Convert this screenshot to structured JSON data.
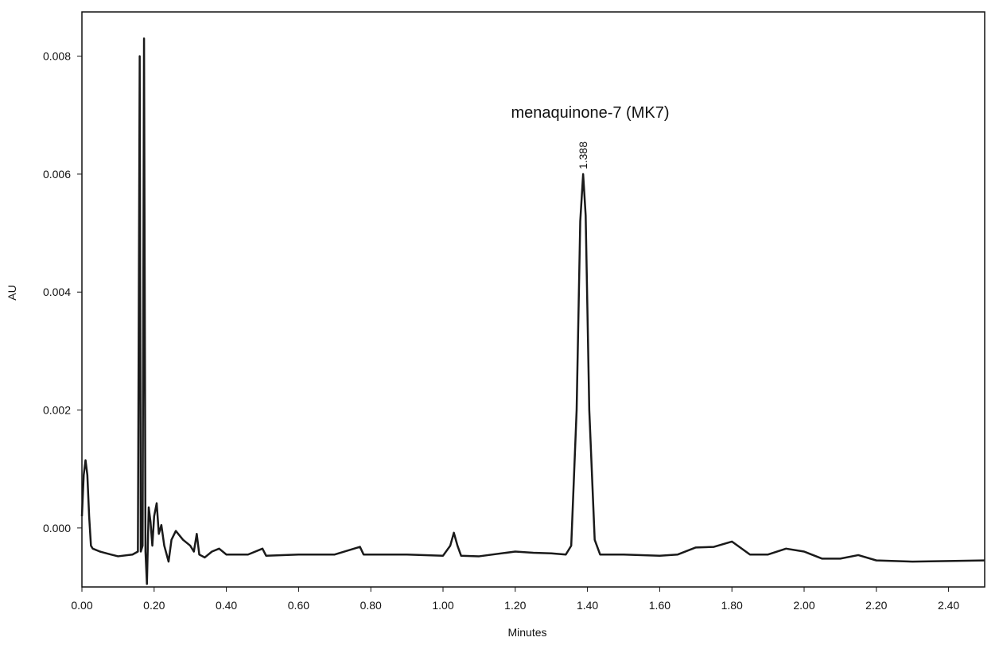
{
  "chart_data": {
    "type": "line",
    "annotation": "menaquinone-7 (MK7)",
    "peak_label": 1.388,
    "x_label": "Minutes",
    "y_label": "AU",
    "xlim": [
      0,
      2.5
    ],
    "ylim": [
      -0.001,
      0.00875
    ],
    "xticks": [
      {
        "value": 0,
        "label": "0.00"
      },
      {
        "value": 0.2,
        "label": "0.20"
      },
      {
        "value": 0.4,
        "label": "0.40"
      },
      {
        "value": 0.6,
        "label": "0.60"
      },
      {
        "value": 0.8,
        "label": "0.80"
      },
      {
        "value": 1.0,
        "label": "1.00"
      },
      {
        "value": 1.2,
        "label": "1.20"
      },
      {
        "value": 1.4,
        "label": "1.40"
      },
      {
        "value": 1.6,
        "label": "1.60"
      },
      {
        "value": 1.8,
        "label": "1.80"
      },
      {
        "value": 2.0,
        "label": "2.00"
      },
      {
        "value": 2.2,
        "label": "2.20"
      },
      {
        "value": 2.4,
        "label": "2.40"
      }
    ],
    "yticks": [
      {
        "value": 0,
        "label": "0.000"
      },
      0.002,
      0.004,
      0.006,
      0.008
    ],
    "color": "#1a1a1a",
    "x": [
      0,
      0.005,
      0.01,
      0.015,
      0.02,
      0.025,
      0.03,
      0.05,
      0.08,
      0.1,
      0.14,
      0.155,
      0.16,
      0.163,
      0.168,
      0.172,
      0.176,
      0.18,
      0.185,
      0.19,
      0.195,
      0.2,
      0.207,
      0.213,
      0.22,
      0.228,
      0.24,
      0.248,
      0.26,
      0.28,
      0.3,
      0.31,
      0.318,
      0.325,
      0.34,
      0.36,
      0.38,
      0.4,
      0.46,
      0.5,
      0.51,
      0.6,
      0.7,
      0.77,
      0.78,
      0.9,
      1.0,
      1.02,
      1.03,
      1.04,
      1.05,
      1.1,
      1.2,
      1.25,
      1.3,
      1.34,
      1.355,
      1.37,
      1.38,
      1.388,
      1.395,
      1.405,
      1.42,
      1.435,
      1.5,
      1.6,
      1.65,
      1.7,
      1.75,
      1.8,
      1.85,
      1.9,
      1.95,
      2.0,
      2.05,
      2.1,
      2.15,
      2.2,
      2.3,
      2.4,
      2.5
    ],
    "values": [
      0.0002,
      0.0009,
      0.00115,
      0.0009,
      0.0002,
      -0.0003,
      -0.00035,
      -0.0004,
      -0.00045,
      -0.00048,
      -0.00045,
      -0.0004,
      0.008,
      -0.0004,
      -0.0003,
      0.0083,
      -0.0004,
      -0.00095,
      0.00035,
      0.0001,
      -0.0003,
      0.0002,
      0.00042,
      -0.0001,
      5e-05,
      -0.0003,
      -0.00057,
      -0.0002,
      -5e-05,
      -0.0002,
      -0.0003,
      -0.0004,
      -0.0001,
      -0.00045,
      -0.0005,
      -0.0004,
      -0.00035,
      -0.00045,
      -0.00045,
      -0.00035,
      -0.00047,
      -0.00045,
      -0.00045,
      -0.00032,
      -0.00045,
      -0.00045,
      -0.00047,
      -0.0003,
      -8e-05,
      -0.0003,
      -0.00047,
      -0.00048,
      -0.0004,
      -0.00042,
      -0.00043,
      -0.00045,
      -0.0003,
      0.002,
      0.0052,
      0.006,
      0.0053,
      0.002,
      -0.0002,
      -0.00045,
      -0.00045,
      -0.00047,
      -0.00045,
      -0.00033,
      -0.00032,
      -0.00023,
      -0.00045,
      -0.00045,
      -0.00035,
      -0.0004,
      -0.00052,
      -0.00052,
      -0.00046,
      -0.00055,
      -0.00057,
      -0.00056,
      -0.00055
    ]
  }
}
